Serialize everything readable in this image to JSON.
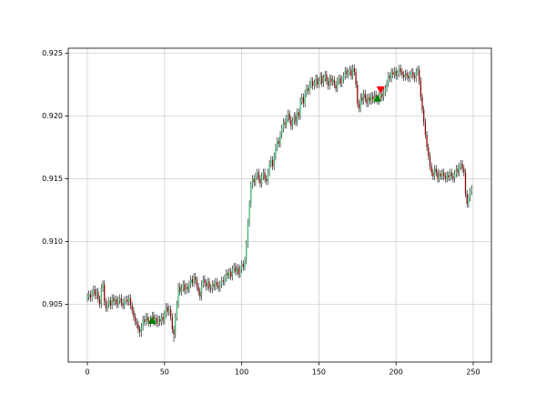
{
  "chart_data": {
    "type": "candlestick",
    "x": [
      0,
      1,
      2,
      3,
      4,
      5,
      6,
      7,
      8,
      9,
      10,
      11,
      12,
      13,
      14,
      15,
      16,
      17,
      18,
      19,
      20,
      21,
      22,
      23,
      24,
      25,
      26,
      27,
      28,
      29,
      30,
      31,
      32,
      33,
      34,
      35,
      36,
      37,
      38,
      39,
      40,
      41,
      42,
      43,
      44,
      45,
      46,
      47,
      48,
      49,
      50,
      51,
      52,
      53,
      54,
      55,
      56,
      57,
      58,
      59,
      60,
      61,
      62,
      63,
      64,
      65,
      66,
      67,
      68,
      69,
      70,
      71,
      72,
      73,
      74,
      75,
      76,
      77,
      78,
      79,
      80,
      81,
      82,
      83,
      84,
      85,
      86,
      87,
      88,
      89,
      90,
      91,
      92,
      93,
      94,
      95,
      96,
      97,
      98,
      99,
      100,
      101,
      102,
      103,
      104,
      105,
      106,
      107,
      108,
      109,
      110,
      111,
      112,
      113,
      114,
      115,
      116,
      117,
      118,
      119,
      120,
      121,
      122,
      123,
      124,
      125,
      126,
      127,
      128,
      129,
      130,
      131,
      132,
      133,
      134,
      135,
      136,
      137,
      138,
      139,
      140,
      141,
      142,
      143,
      144,
      145,
      146,
      147,
      148,
      149,
      150,
      151,
      152,
      153,
      154,
      155,
      156,
      157,
      158,
      159,
      160,
      161,
      162,
      163,
      164,
      165,
      166,
      167,
      168,
      169,
      170,
      171,
      172,
      173,
      174,
      175,
      176,
      177,
      178,
      179,
      180,
      181,
      182,
      183,
      184,
      185,
      186,
      187,
      188,
      189,
      190,
      191,
      192,
      193,
      194,
      195,
      196,
      197,
      198,
      199,
      200,
      201,
      202,
      203,
      204,
      205,
      206,
      207,
      208,
      209,
      210,
      211,
      212,
      213,
      214,
      215,
      216,
      217,
      218,
      219,
      220,
      221,
      222,
      223,
      224,
      225,
      226,
      227,
      228,
      229,
      230,
      231,
      232,
      233,
      234,
      235,
      236,
      237,
      238,
      239,
      240,
      241,
      242,
      243,
      244,
      245,
      246,
      247,
      248,
      249
    ],
    "open": [
      0.9055,
      0.9056,
      0.9058,
      0.9055,
      0.9059,
      0.9062,
      0.9057,
      0.906,
      0.9054,
      0.905,
      0.9063,
      0.9066,
      0.9052,
      0.9047,
      0.905,
      0.9053,
      0.9049,
      0.9055,
      0.9052,
      0.9054,
      0.905,
      0.9053,
      0.9055,
      0.9051,
      0.9049,
      0.9053,
      0.9054,
      0.9052,
      0.9055,
      0.9049,
      0.9045,
      0.904,
      0.9036,
      0.9034,
      0.903,
      0.9028,
      0.9032,
      0.9038,
      0.9036,
      0.904,
      0.9037,
      0.9035,
      0.9038,
      0.9041,
      0.9036,
      0.9039,
      0.9035,
      0.9038,
      0.9036,
      0.904,
      0.9037,
      0.9042,
      0.9048,
      0.9044,
      0.9046,
      0.904,
      0.903,
      0.9026,
      0.904,
      0.905,
      0.9064,
      0.906,
      0.9063,
      0.9066,
      0.9061,
      0.9064,
      0.9062,
      0.9066,
      0.907,
      0.9067,
      0.9072,
      0.9069,
      0.9064,
      0.906,
      0.9056,
      0.9066,
      0.907,
      0.9067,
      0.9064,
      0.9068,
      0.9063,
      0.9062,
      0.9066,
      0.9064,
      0.9068,
      0.9065,
      0.9063,
      0.9066,
      0.9069,
      0.9068,
      0.9071,
      0.9075,
      0.9073,
      0.9076,
      0.9072,
      0.9078,
      0.908,
      0.9076,
      0.9079,
      0.9074,
      0.9078,
      0.9082,
      0.908,
      0.9085,
      0.9098,
      0.9115,
      0.913,
      0.9145,
      0.915,
      0.9147,
      0.9152,
      0.9155,
      0.915,
      0.9146,
      0.9152,
      0.9155,
      0.915,
      0.9148,
      0.9155,
      0.9162,
      0.9165,
      0.916,
      0.9168,
      0.9175,
      0.918,
      0.9178,
      0.9185,
      0.919,
      0.9195,
      0.9193,
      0.9198,
      0.9202,
      0.9197,
      0.9192,
      0.9196,
      0.92,
      0.9195,
      0.9203,
      0.92,
      0.9212,
      0.9215,
      0.921,
      0.9218,
      0.9222,
      0.922,
      0.9225,
      0.9228,
      0.9224,
      0.9226,
      0.923,
      0.9225,
      0.9228,
      0.9232,
      0.9226,
      0.923,
      0.9233,
      0.9228,
      0.9224,
      0.923,
      0.9227,
      0.9229,
      0.9225,
      0.9222,
      0.9228,
      0.923,
      0.9226,
      0.9229,
      0.9232,
      0.9236,
      0.9233,
      0.9235,
      0.9237,
      0.9232,
      0.9238,
      0.9235,
      0.9225,
      0.921,
      0.9206,
      0.9215,
      0.9212,
      0.9218,
      0.9214,
      0.921,
      0.9215,
      0.9212,
      0.9216,
      0.9213,
      0.9217,
      0.9214,
      0.9212,
      0.9216,
      0.9218,
      0.9215,
      0.9219,
      0.9222,
      0.9226,
      0.9232,
      0.923,
      0.9235,
      0.9233,
      0.9236,
      0.9232,
      0.9234,
      0.9238,
      0.9235,
      0.9233,
      0.9231,
      0.9234,
      0.9232,
      0.923,
      0.9233,
      0.9235,
      0.9232,
      0.923,
      0.9235,
      0.9237,
      0.9228,
      0.9215,
      0.9205,
      0.9195,
      0.9185,
      0.9175,
      0.9168,
      0.916,
      0.9155,
      0.9152,
      0.9158,
      0.9155,
      0.915,
      0.9154,
      0.9152,
      0.9155,
      0.9152,
      0.915,
      0.9153,
      0.9151,
      0.9155,
      0.9152,
      0.915,
      0.9154,
      0.9158,
      0.9155,
      0.916,
      0.9162,
      0.9158,
      0.9155,
      0.9138,
      0.913,
      0.9135,
      0.914
    ],
    "high": [
      0.9059,
      0.9061,
      0.9061,
      0.9062,
      0.9065,
      0.9065,
      0.9063,
      0.9063,
      0.9057,
      0.9066,
      0.9069,
      0.9069,
      0.9055,
      0.9053,
      0.9056,
      0.9056,
      0.9058,
      0.9058,
      0.9057,
      0.9057,
      0.9056,
      0.9058,
      0.9058,
      0.9054,
      0.9056,
      0.9057,
      0.9057,
      0.9058,
      0.9058,
      0.9052,
      0.9048,
      0.9043,
      0.9039,
      0.9037,
      0.9033,
      0.9035,
      0.9041,
      0.9041,
      0.9043,
      0.9043,
      0.904,
      0.9041,
      0.9044,
      0.9044,
      0.9042,
      0.9042,
      0.9041,
      0.9041,
      0.9043,
      0.9043,
      0.9045,
      0.9051,
      0.9051,
      0.9049,
      0.9049,
      0.9043,
      0.9033,
      0.9043,
      0.9053,
      0.9067,
      0.9067,
      0.9066,
      0.9069,
      0.9069,
      0.9067,
      0.9067,
      0.9069,
      0.9073,
      0.9073,
      0.9075,
      0.9075,
      0.9072,
      0.9067,
      0.9063,
      0.9069,
      0.9073,
      0.9073,
      0.907,
      0.9071,
      0.9071,
      0.9066,
      0.9069,
      0.9069,
      0.9071,
      0.9071,
      0.9068,
      0.9069,
      0.9072,
      0.9072,
      0.9074,
      0.9078,
      0.9078,
      0.9079,
      0.9079,
      0.9081,
      0.9083,
      0.9083,
      0.9082,
      0.9082,
      0.9081,
      0.9085,
      0.9085,
      0.9088,
      0.9101,
      0.9118,
      0.9133,
      0.9148,
      0.9153,
      0.9153,
      0.9155,
      0.9158,
      0.9158,
      0.9153,
      0.9155,
      0.9158,
      0.9158,
      0.9153,
      0.9158,
      0.9165,
      0.9168,
      0.9168,
      0.9171,
      0.9178,
      0.9183,
      0.9183,
      0.9188,
      0.9193,
      0.9198,
      0.9198,
      0.9201,
      0.9205,
      0.9205,
      0.92,
      0.9199,
      0.9203,
      0.9203,
      0.9206,
      0.9206,
      0.9215,
      0.9218,
      0.9218,
      0.9221,
      0.9225,
      0.9225,
      0.9228,
      0.9231,
      0.9231,
      0.9229,
      0.9233,
      0.9233,
      0.9231,
      0.9235,
      0.9235,
      0.9233,
      0.9236,
      0.9236,
      0.9231,
      0.9233,
      0.9233,
      0.9232,
      0.9232,
      0.9228,
      0.9231,
      0.9233,
      0.9233,
      0.9232,
      0.9235,
      0.9239,
      0.9239,
      0.9238,
      0.924,
      0.924,
      0.9241,
      0.9241,
      0.9238,
      0.9228,
      0.9213,
      0.9218,
      0.9218,
      0.9221,
      0.9221,
      0.9217,
      0.9218,
      0.9218,
      0.9219,
      0.9219,
      0.922,
      0.922,
      0.9217,
      0.9219,
      0.9221,
      0.9221,
      0.9222,
      0.9225,
      0.9229,
      0.9235,
      0.9235,
      0.9238,
      0.9238,
      0.9239,
      0.9239,
      0.9237,
      0.9241,
      0.9241,
      0.9238,
      0.9236,
      0.9237,
      0.9237,
      0.9235,
      0.9236,
      0.9238,
      0.9238,
      0.9235,
      0.9238,
      0.924,
      0.924,
      0.9231,
      0.9218,
      0.9208,
      0.9198,
      0.9188,
      0.9178,
      0.9171,
      0.9163,
      0.9158,
      0.9161,
      0.9161,
      0.9158,
      0.9157,
      0.9157,
      0.9158,
      0.9158,
      0.9155,
      0.9156,
      0.9156,
      0.9158,
      0.9158,
      0.9155,
      0.9157,
      0.9161,
      0.9161,
      0.9163,
      0.9165,
      0.9165,
      0.9161,
      0.9158,
      0.9141,
      0.9138,
      0.9143,
      0.9145
    ],
    "low": [
      0.9052,
      0.9053,
      0.9052,
      0.9052,
      0.9056,
      0.9054,
      0.9054,
      0.9051,
      0.9047,
      0.9047,
      0.906,
      0.9049,
      0.9044,
      0.9044,
      0.9047,
      0.9046,
      0.9046,
      0.9049,
      0.9049,
      0.9047,
      0.9047,
      0.905,
      0.9048,
      0.9046,
      0.9046,
      0.905,
      0.9049,
      0.9049,
      0.9046,
      0.9042,
      0.9037,
      0.9033,
      0.9031,
      0.9027,
      0.9024,
      0.9024,
      0.9029,
      0.9033,
      0.9033,
      0.9034,
      0.9032,
      0.9032,
      0.9035,
      0.9033,
      0.9033,
      0.9032,
      0.9032,
      0.9033,
      0.9033,
      0.9034,
      0.9034,
      0.9039,
      0.9041,
      0.9041,
      0.9037,
      0.9027,
      0.902,
      0.9023,
      0.9037,
      0.9047,
      0.9057,
      0.9057,
      0.906,
      0.9058,
      0.9058,
      0.9059,
      0.9059,
      0.9063,
      0.9064,
      0.9064,
      0.9066,
      0.9061,
      0.9057,
      0.9053,
      0.9053,
      0.9063,
      0.9064,
      0.9061,
      0.9061,
      0.906,
      0.9059,
      0.9059,
      0.9061,
      0.9061,
      0.9062,
      0.906,
      0.906,
      0.9063,
      0.9065,
      0.9065,
      0.9068,
      0.907,
      0.907,
      0.9069,
      0.9069,
      0.9075,
      0.9073,
      0.9073,
      0.9071,
      0.9071,
      0.9075,
      0.9077,
      0.9077,
      0.9082,
      0.9095,
      0.9112,
      0.9127,
      0.9142,
      0.9144,
      0.9144,
      0.9149,
      0.9147,
      0.9143,
      0.9143,
      0.9149,
      0.9147,
      0.9145,
      0.9145,
      0.9152,
      0.9159,
      0.9157,
      0.9157,
      0.9165,
      0.9172,
      0.9175,
      0.9175,
      0.9182,
      0.9187,
      0.919,
      0.919,
      0.9195,
      0.9194,
      0.9189,
      0.9189,
      0.9193,
      0.9192,
      0.9192,
      0.9197,
      0.9197,
      0.9209,
      0.9207,
      0.9207,
      0.9215,
      0.9217,
      0.9217,
      0.9222,
      0.9221,
      0.9221,
      0.9223,
      0.9222,
      0.9222,
      0.9225,
      0.9223,
      0.9223,
      0.9227,
      0.9225,
      0.9221,
      0.9221,
      0.9224,
      0.9224,
      0.9222,
      0.9219,
      0.9219,
      0.9225,
      0.9223,
      0.9223,
      0.9226,
      0.9229,
      0.923,
      0.923,
      0.9232,
      0.9229,
      0.9229,
      0.9232,
      0.9222,
      0.9207,
      0.9203,
      0.9203,
      0.9209,
      0.9209,
      0.9211,
      0.9207,
      0.9207,
      0.9209,
      0.9209,
      0.921,
      0.921,
      0.9211,
      0.9209,
      0.9209,
      0.9213,
      0.9212,
      0.9212,
      0.9216,
      0.9219,
      0.9223,
      0.9227,
      0.9227,
      0.923,
      0.923,
      0.9229,
      0.9229,
      0.9231,
      0.9232,
      0.923,
      0.9228,
      0.9228,
      0.9229,
      0.9227,
      0.9227,
      0.923,
      0.9229,
      0.9227,
      0.9227,
      0.9232,
      0.9225,
      0.9212,
      0.9202,
      0.9192,
      0.9182,
      0.9172,
      0.9165,
      0.9157,
      0.9152,
      0.9149,
      0.9149,
      0.9152,
      0.9147,
      0.9147,
      0.9149,
      0.9149,
      0.9149,
      0.9147,
      0.9147,
      0.9148,
      0.9148,
      0.9149,
      0.9147,
      0.9147,
      0.9151,
      0.9152,
      0.9152,
      0.9157,
      0.9155,
      0.9152,
      0.9135,
      0.9127,
      0.9127,
      0.9132,
      0.9137
    ],
    "close": [
      0.9056,
      0.9058,
      0.9055,
      0.9059,
      0.9062,
      0.9057,
      0.906,
      0.9054,
      0.905,
      0.9063,
      0.9066,
      0.9052,
      0.9047,
      0.905,
      0.9053,
      0.9049,
      0.9055,
      0.9052,
      0.9054,
      0.905,
      0.9053,
      0.9055,
      0.9051,
      0.9049,
      0.9053,
      0.9054,
      0.9052,
      0.9055,
      0.9049,
      0.9045,
      0.904,
      0.9036,
      0.9034,
      0.903,
      0.9028,
      0.9032,
      0.9038,
      0.9036,
      0.904,
      0.9037,
      0.9035,
      0.9038,
      0.9041,
      0.9036,
      0.9039,
      0.9035,
      0.9038,
      0.9036,
      0.904,
      0.9037,
      0.9042,
      0.9048,
      0.9044,
      0.9046,
      0.904,
      0.903,
      0.9026,
      0.904,
      0.905,
      0.9064,
      0.906,
      0.9063,
      0.9066,
      0.9061,
      0.9064,
      0.9062,
      0.9066,
      0.907,
      0.9067,
      0.9072,
      0.9069,
      0.9064,
      0.906,
      0.9056,
      0.9066,
      0.907,
      0.9067,
      0.9064,
      0.9068,
      0.9063,
      0.9062,
      0.9066,
      0.9064,
      0.9068,
      0.9065,
      0.9063,
      0.9066,
      0.9069,
      0.9068,
      0.9071,
      0.9075,
      0.9073,
      0.9076,
      0.9072,
      0.9078,
      0.908,
      0.9076,
      0.9079,
      0.9074,
      0.9078,
      0.9082,
      0.908,
      0.9085,
      0.9098,
      0.9115,
      0.913,
      0.9145,
      0.915,
      0.9147,
      0.9152,
      0.9155,
      0.915,
      0.9146,
      0.9152,
      0.9155,
      0.915,
      0.9148,
      0.9155,
      0.9162,
      0.9165,
      0.916,
      0.9168,
      0.9175,
      0.918,
      0.9178,
      0.9185,
      0.919,
      0.9195,
      0.9193,
      0.9198,
      0.9202,
      0.9197,
      0.9192,
      0.9196,
      0.92,
      0.9195,
      0.9203,
      0.92,
      0.9212,
      0.9215,
      0.921,
      0.9218,
      0.9222,
      0.922,
      0.9225,
      0.9228,
      0.9224,
      0.9226,
      0.923,
      0.9225,
      0.9228,
      0.9232,
      0.9226,
      0.923,
      0.9233,
      0.9228,
      0.9224,
      0.923,
      0.9227,
      0.9229,
      0.9225,
      0.9222,
      0.9228,
      0.923,
      0.9226,
      0.9229,
      0.9232,
      0.9236,
      0.9233,
      0.9235,
      0.9237,
      0.9232,
      0.9238,
      0.9235,
      0.9225,
      0.921,
      0.9206,
      0.9215,
      0.9212,
      0.9218,
      0.9214,
      0.921,
      0.9215,
      0.9212,
      0.9216,
      0.9213,
      0.9217,
      0.9214,
      0.9212,
      0.9216,
      0.9218,
      0.9215,
      0.9219,
      0.9222,
      0.9226,
      0.9232,
      0.923,
      0.9235,
      0.9233,
      0.9236,
      0.9232,
      0.9234,
      0.9238,
      0.9235,
      0.9233,
      0.9231,
      0.9234,
      0.9232,
      0.923,
      0.9233,
      0.9235,
      0.9232,
      0.923,
      0.9235,
      0.9237,
      0.9228,
      0.9215,
      0.9205,
      0.9195,
      0.9185,
      0.9175,
      0.9168,
      0.916,
      0.9155,
      0.9152,
      0.9158,
      0.9155,
      0.915,
      0.9154,
      0.9152,
      0.9155,
      0.9152,
      0.915,
      0.9153,
      0.9151,
      0.9155,
      0.9152,
      0.915,
      0.9154,
      0.9158,
      0.9155,
      0.916,
      0.9162,
      0.9158,
      0.9155,
      0.9138,
      0.913,
      0.9135,
      0.914,
      0.9142
    ],
    "up_color": "#3cb371",
    "down_color": "#8b0000",
    "wick_color": "#000000",
    "buy_signals": {
      "x": [
        42,
        188
      ],
      "y": [
        0.9037,
        0.9214
      ],
      "color": "#008000"
    },
    "sell_signals": {
      "x": [
        190
      ],
      "y": [
        0.9221
      ],
      "color": "#ff0000"
    },
    "xlim": [
      -12.4,
      261.8
    ],
    "ylim": [
      0.9004,
      0.9254
    ],
    "xticks": [
      0,
      50,
      100,
      150,
      200,
      250
    ],
    "yticks": [
      0.905,
      {
        "value": 0.91,
        "label": "0.910"
      },
      0.915,
      {
        "value": 0.92,
        "label": "0.920"
      },
      0.925
    ],
    "grid": true
  }
}
